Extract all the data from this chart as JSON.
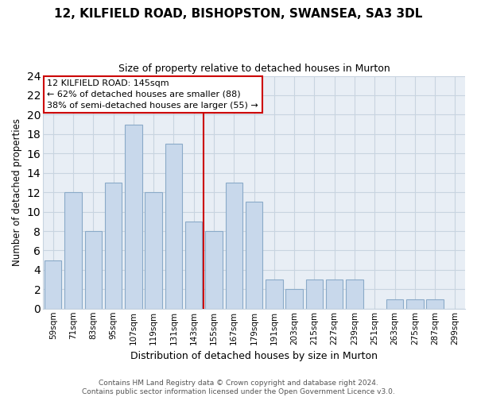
{
  "title": "12, KILFIELD ROAD, BISHOPSTON, SWANSEA, SA3 3DL",
  "subtitle": "Size of property relative to detached houses in Murton",
  "xlabel": "Distribution of detached houses by size in Murton",
  "ylabel": "Number of detached properties",
  "bar_color": "#c8d8eb",
  "bar_edge_color": "#8aaac8",
  "bins": [
    "59sqm",
    "71sqm",
    "83sqm",
    "95sqm",
    "107sqm",
    "119sqm",
    "131sqm",
    "143sqm",
    "155sqm",
    "167sqm",
    "179sqm",
    "191sqm",
    "203sqm",
    "215sqm",
    "227sqm",
    "239sqm",
    "251sqm",
    "263sqm",
    "275sqm",
    "287sqm",
    "299sqm"
  ],
  "counts": [
    5,
    12,
    8,
    13,
    19,
    12,
    17,
    9,
    8,
    13,
    11,
    3,
    2,
    3,
    3,
    3,
    0,
    1,
    1,
    1,
    0
  ],
  "vline_x": 7.5,
  "vline_color": "#cc0000",
  "annotation_title": "12 KILFIELD ROAD: 145sqm",
  "annotation_line1": "← 62% of detached houses are smaller (88)",
  "annotation_line2": "38% of semi-detached houses are larger (55) →",
  "annotation_box_color": "#ffffff",
  "annotation_box_edge": "#cc0000",
  "ylim": [
    0,
    24
  ],
  "yticks": [
    0,
    2,
    4,
    6,
    8,
    10,
    12,
    14,
    16,
    18,
    20,
    22,
    24
  ],
  "footer1": "Contains HM Land Registry data © Crown copyright and database right 2024.",
  "footer2": "Contains public sector information licensed under the Open Government Licence v3.0.",
  "background_color": "#ffffff",
  "plot_bg_color": "#e8eef5",
  "grid_color": "#c8d4e0"
}
